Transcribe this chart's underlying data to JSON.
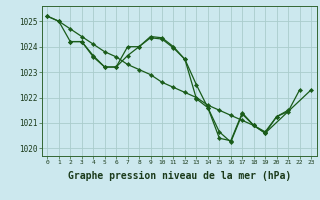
{
  "background_color": "#cce8ee",
  "grid_color": "#aacccc",
  "line_color": "#1a5c1a",
  "marker_color": "#1a5c1a",
  "xlabel": "Graphe pression niveau de la mer (hPa)",
  "xlabel_fontsize": 7,
  "ylabel_ticks": [
    1020,
    1021,
    1022,
    1023,
    1024,
    1025
  ],
  "xlim": [
    -0.5,
    23.5
  ],
  "ylim": [
    1019.7,
    1025.6
  ],
  "series": [
    {
      "x": [
        0,
        1,
        2,
        3,
        4,
        5,
        6,
        7,
        8,
        9,
        10,
        11,
        12,
        13,
        14,
        15,
        16,
        17,
        18,
        19,
        20,
        21,
        22,
        23
      ],
      "y": [
        1025.2,
        1025.0,
        1024.7,
        1024.4,
        1024.1,
        1023.8,
        1023.6,
        1023.3,
        1023.1,
        1022.9,
        1022.6,
        1022.4,
        1022.2,
        1022.0,
        1021.7,
        1021.5,
        1021.3,
        1021.1,
        1020.9,
        1020.6,
        null,
        null,
        null,
        1022.3
      ],
      "has_markers": false
    },
    {
      "x": [
        0,
        1,
        2,
        3,
        4,
        5,
        6,
        7,
        8,
        9,
        10,
        11,
        12,
        13,
        14,
        15,
        16,
        17,
        18,
        19,
        20,
        21,
        22,
        23
      ],
      "y": [
        1025.2,
        1025.0,
        1024.2,
        1024.2,
        1023.6,
        1023.2,
        1023.2,
        1024.0,
        1024.0,
        1024.4,
        1024.35,
        1024.0,
        1023.5,
        1022.5,
        1021.6,
        1020.4,
        1020.3,
        1021.4,
        1020.9,
        1020.65,
        1021.25,
        1021.5,
        null,
        null
      ],
      "has_markers": true
    },
    {
      "x": [
        2,
        3,
        4,
        5,
        6,
        7,
        8,
        9,
        10,
        11,
        12,
        13,
        14,
        15,
        16,
        17,
        18,
        19,
        20,
        21,
        22,
        23
      ],
      "y": [
        1024.2,
        1024.2,
        1023.65,
        1023.2,
        1023.2,
        1023.65,
        1024.0,
        1024.35,
        1024.3,
        1023.95,
        1023.5,
        1021.95,
        1021.6,
        1020.65,
        1020.25,
        1021.35,
        1020.9,
        1020.6,
        1021.25,
        1021.45,
        1022.3,
        null
      ],
      "has_markers": true
    }
  ]
}
